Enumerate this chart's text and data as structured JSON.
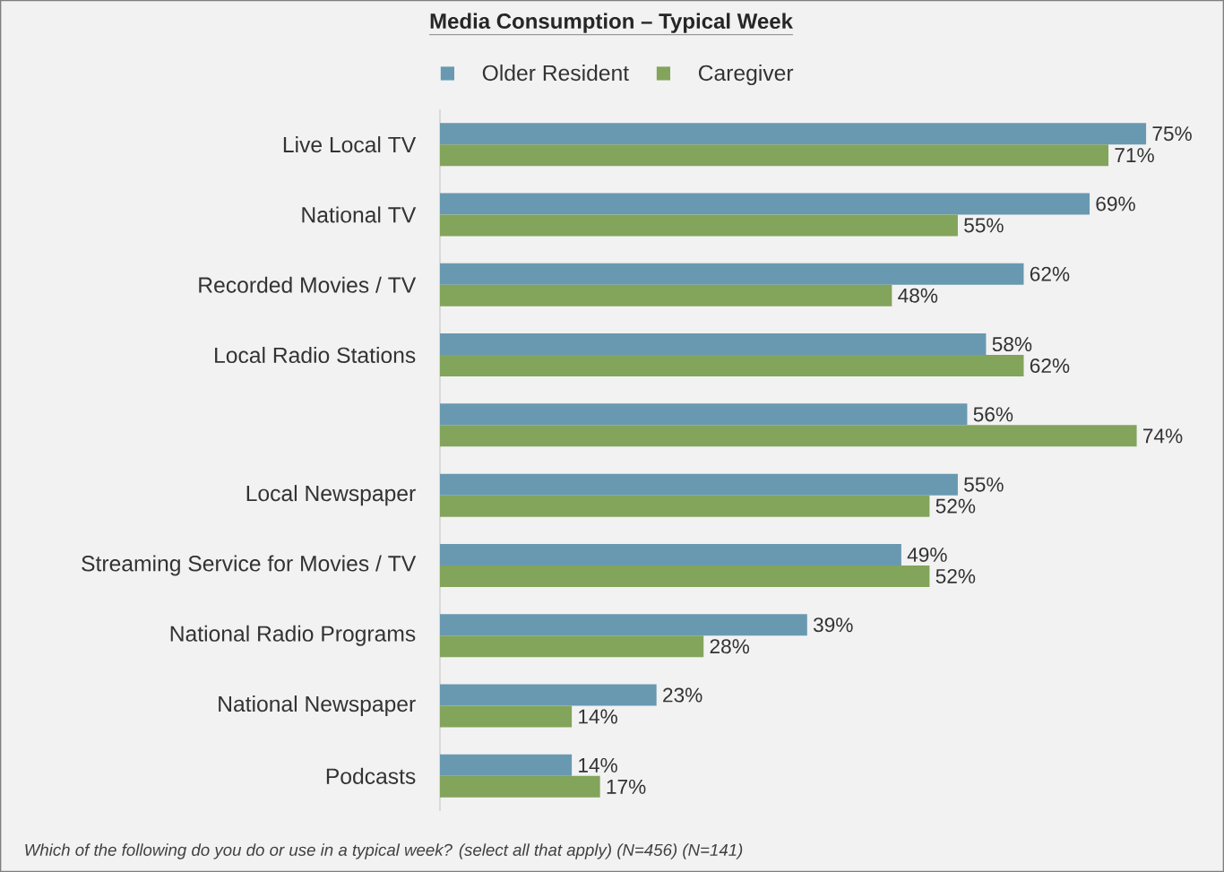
{
  "chart_data": {
    "type": "bar",
    "orientation": "horizontal",
    "title": "Media Consumption – Typical Week",
    "categories": [
      "Live Local TV",
      "National TV",
      "Recorded Movies / TV",
      "Local Radio Stations",
      null,
      "Local Newspaper",
      "Streaming Service for Movies / TV",
      "National Radio Programs",
      "National Newspaper",
      "Podcasts"
    ],
    "series": [
      {
        "name": "Older Resident",
        "color": "#6999b1",
        "values": [
          75,
          69,
          62,
          58,
          56,
          55,
          49,
          39,
          23,
          14
        ],
        "value_labels": [
          "75%",
          "69%",
          "62%",
          "58%",
          "56%",
          "55%",
          "49%",
          "39%",
          "23%",
          "14%"
        ]
      },
      {
        "name": "Caregiver",
        "color": "#83a45b",
        "values": [
          71,
          55,
          48,
          62,
          74,
          52,
          52,
          28,
          14,
          17
        ],
        "value_labels": [
          "71%",
          "55%",
          "48%",
          "62%",
          "74%",
          "52%",
          "52%",
          "28%",
          "14%",
          "17%"
        ]
      }
    ],
    "legend": "top",
    "annotations": [
      "Which of the following do you do or use in a typical week? (select all that apply) (N=456) (N=141)"
    ]
  }
}
